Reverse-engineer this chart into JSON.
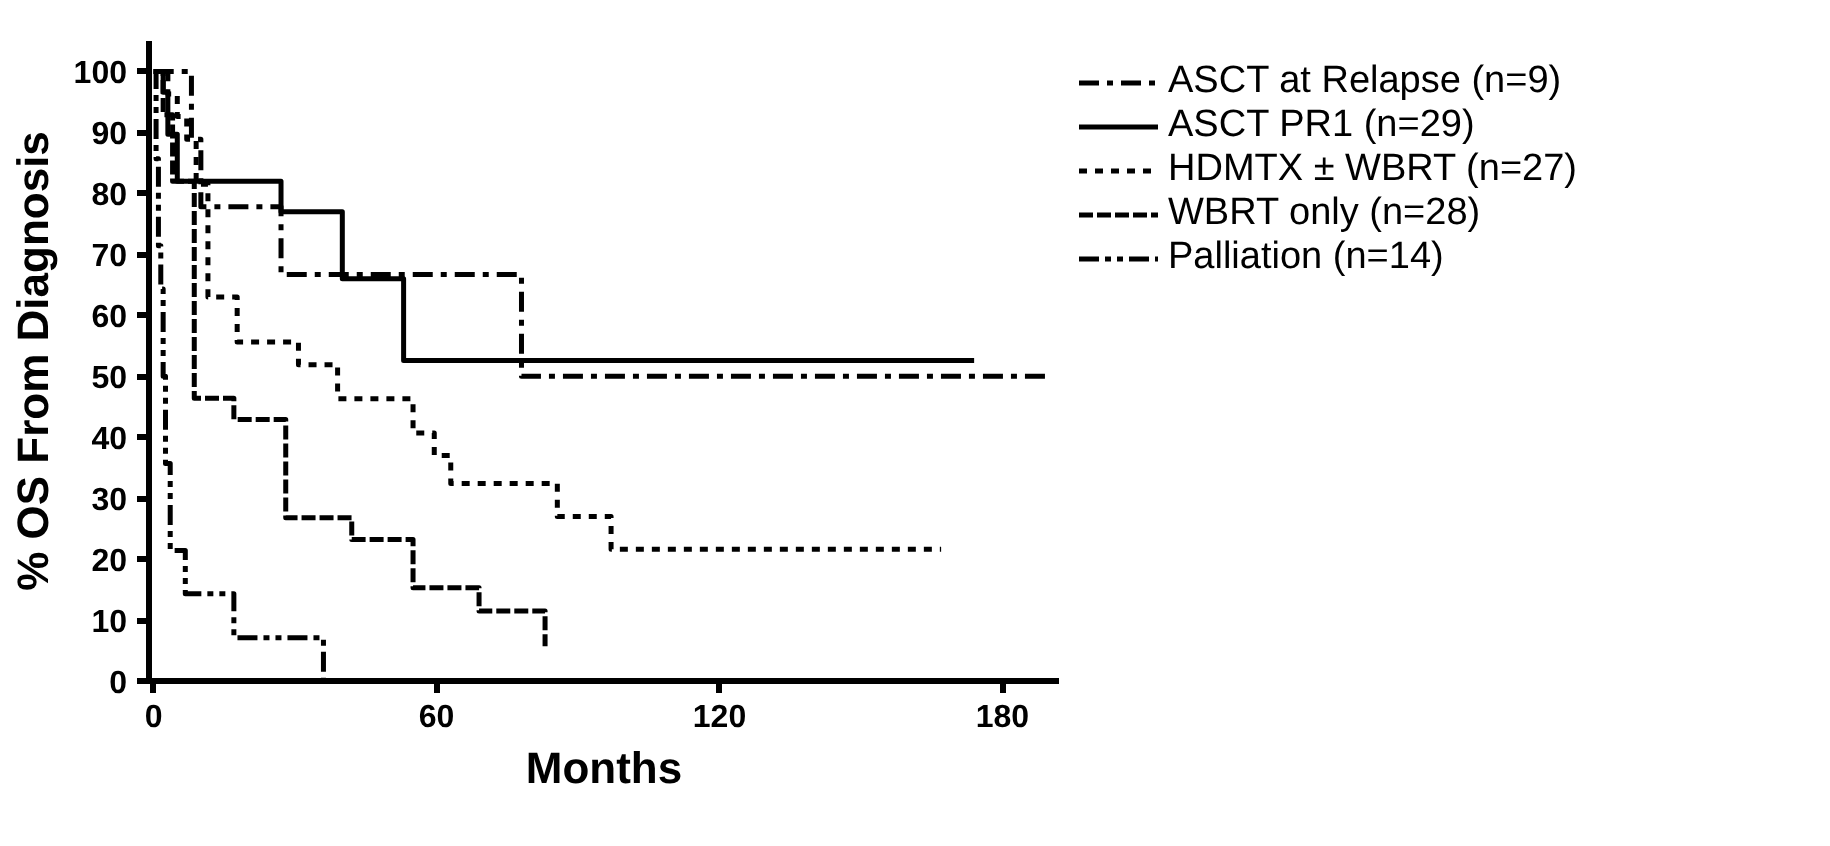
{
  "chart_data": {
    "type": "step",
    "xlabel": "Months",
    "ylabel": "% OS From Diagnosis",
    "xlim": [
      -1,
      192
    ],
    "ylim": [
      0,
      105
    ],
    "xticks": [
      0,
      60,
      120,
      180
    ],
    "yticks": [
      0,
      10,
      20,
      30,
      40,
      50,
      60,
      70,
      80,
      90,
      100
    ],
    "grid": false,
    "legend": "top right",
    "marker": "none",
    "series": [
      {
        "name": "ASCT at Relapse (n=9)",
        "color": "#000000",
        "line_style": "dashdot",
        "x": [
          0,
          8,
          10,
          27,
          78,
          190
        ],
        "values": [
          100,
          88.9,
          77.8,
          66.7,
          50,
          50
        ]
      },
      {
        "name": "ASCT PR1 (n=29)",
        "color": "#000000",
        "line_style": "solid",
        "x": [
          0,
          2,
          3,
          5,
          27,
          40,
          53,
          174
        ],
        "values": [
          100,
          96.6,
          89.7,
          82,
          77,
          66,
          52.6,
          52.6
        ]
      },
      {
        "name": "HDMTX ± WBRT (n=27)",
        "color": "#000000",
        "line_style": "dotted",
        "x": [
          0,
          3,
          5,
          7,
          9,
          11.5,
          17.7,
          30.7,
          39,
          55,
          59.5,
          63,
          85.6,
          97,
          167
        ],
        "values": [
          100,
          96.3,
          92.6,
          88.9,
          81.5,
          63,
          55.6,
          51.9,
          46.3,
          40.7,
          37,
          32.4,
          27,
          21.6,
          21.6
        ]
      },
      {
        "name": "WBRT only (n=28)",
        "color": "#000000",
        "line_style": "dashed",
        "x": [
          0,
          2,
          4,
          8.6,
          17,
          28,
          42,
          55,
          69,
          83
        ],
        "values": [
          100,
          92.9,
          82,
          46.4,
          42.9,
          26.8,
          23.2,
          15.3,
          11.5,
          5.7
        ]
      },
      {
        "name": "Palliation (n=14)",
        "color": "#000000",
        "line_style": "dashdotdot",
        "x": [
          0,
          0.5,
          1,
          1.5,
          2,
          2.5,
          3.5,
          6.7,
          17,
          36
        ],
        "values": [
          100,
          85.7,
          71.4,
          64.3,
          50,
          35.7,
          21.4,
          14.3,
          7.1,
          0
        ]
      }
    ]
  }
}
